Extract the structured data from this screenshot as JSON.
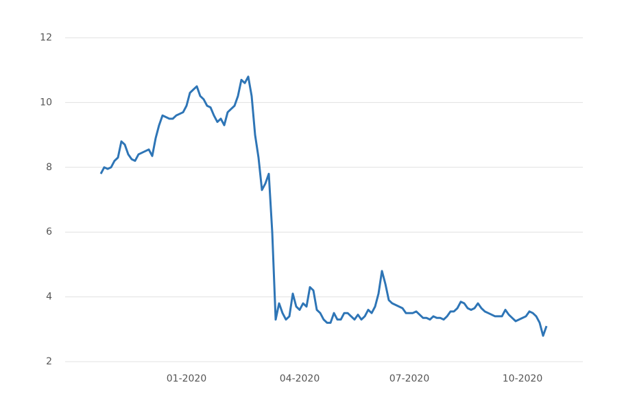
{
  "chart_data": {
    "type": "line",
    "categories": [
      null,
      null,
      null,
      null,
      null,
      null,
      null,
      null,
      null,
      null,
      null,
      null,
      null,
      null,
      null,
      null,
      null,
      null,
      null,
      null,
      null,
      null,
      null,
      null,
      null,
      "01-2020",
      null,
      null,
      null,
      null,
      null,
      null,
      null,
      null,
      null,
      null,
      null,
      null,
      null,
      null,
      null,
      null,
      null,
      null,
      null,
      null,
      null,
      null,
      null,
      null,
      null,
      null,
      null,
      null,
      null,
      null,
      null,
      null,
      "04-2020",
      null,
      null,
      null,
      null,
      null,
      null,
      null,
      null,
      null,
      null,
      null,
      null,
      null,
      null,
      null,
      null,
      null,
      null,
      null,
      null,
      null,
      null,
      null,
      null,
      null,
      null,
      null,
      null,
      null,
      null,
      null,
      "07-2020",
      null,
      null,
      null,
      null,
      null,
      null,
      null,
      null,
      null,
      null,
      null,
      null,
      null,
      null,
      null,
      null,
      null,
      null,
      null,
      null,
      null,
      null,
      null,
      null,
      null,
      null,
      null,
      null,
      null,
      null,
      null,
      null,
      "10-2020",
      null,
      null,
      null,
      null,
      null,
      null,
      null
    ],
    "values": [
      7.8,
      8.0,
      7.95,
      8.0,
      8.2,
      8.3,
      8.8,
      8.7,
      8.4,
      8.25,
      8.2,
      8.4,
      8.45,
      8.5,
      8.55,
      8.35,
      8.9,
      9.3,
      9.6,
      9.55,
      9.5,
      9.5,
      9.6,
      9.65,
      9.7,
      9.9,
      10.3,
      10.4,
      10.5,
      10.2,
      10.1,
      9.9,
      9.85,
      9.6,
      9.4,
      9.5,
      9.3,
      9.7,
      9.8,
      9.9,
      10.2,
      10.7,
      10.6,
      10.8,
      10.2,
      9.0,
      8.3,
      7.3,
      7.5,
      7.8,
      6.0,
      3.3,
      3.8,
      3.5,
      3.3,
      3.4,
      4.1,
      3.7,
      3.6,
      3.8,
      3.7,
      4.3,
      4.2,
      3.6,
      3.5,
      3.3,
      3.2,
      3.2,
      3.5,
      3.3,
      3.3,
      3.5,
      3.5,
      3.4,
      3.3,
      3.45,
      3.3,
      3.4,
      3.6,
      3.5,
      3.7,
      4.1,
      4.8,
      4.4,
      3.9,
      3.8,
      3.75,
      3.7,
      3.65,
      3.5,
      3.5,
      3.5,
      3.55,
      3.45,
      3.35,
      3.35,
      3.3,
      3.4,
      3.35,
      3.35,
      3.3,
      3.4,
      3.55,
      3.55,
      3.65,
      3.85,
      3.8,
      3.65,
      3.6,
      3.65,
      3.8,
      3.65,
      3.55,
      3.5,
      3.45,
      3.4,
      3.4,
      3.4,
      3.6,
      3.45,
      3.35,
      3.25,
      3.3,
      3.35,
      3.4,
      3.55,
      3.5,
      3.4,
      3.2,
      2.8,
      3.1
    ],
    "color": "#2e75b6",
    "ylim": [
      2,
      12
    ],
    "yticks": [
      2,
      4,
      6,
      8,
      10,
      12
    ],
    "grid": true
  }
}
